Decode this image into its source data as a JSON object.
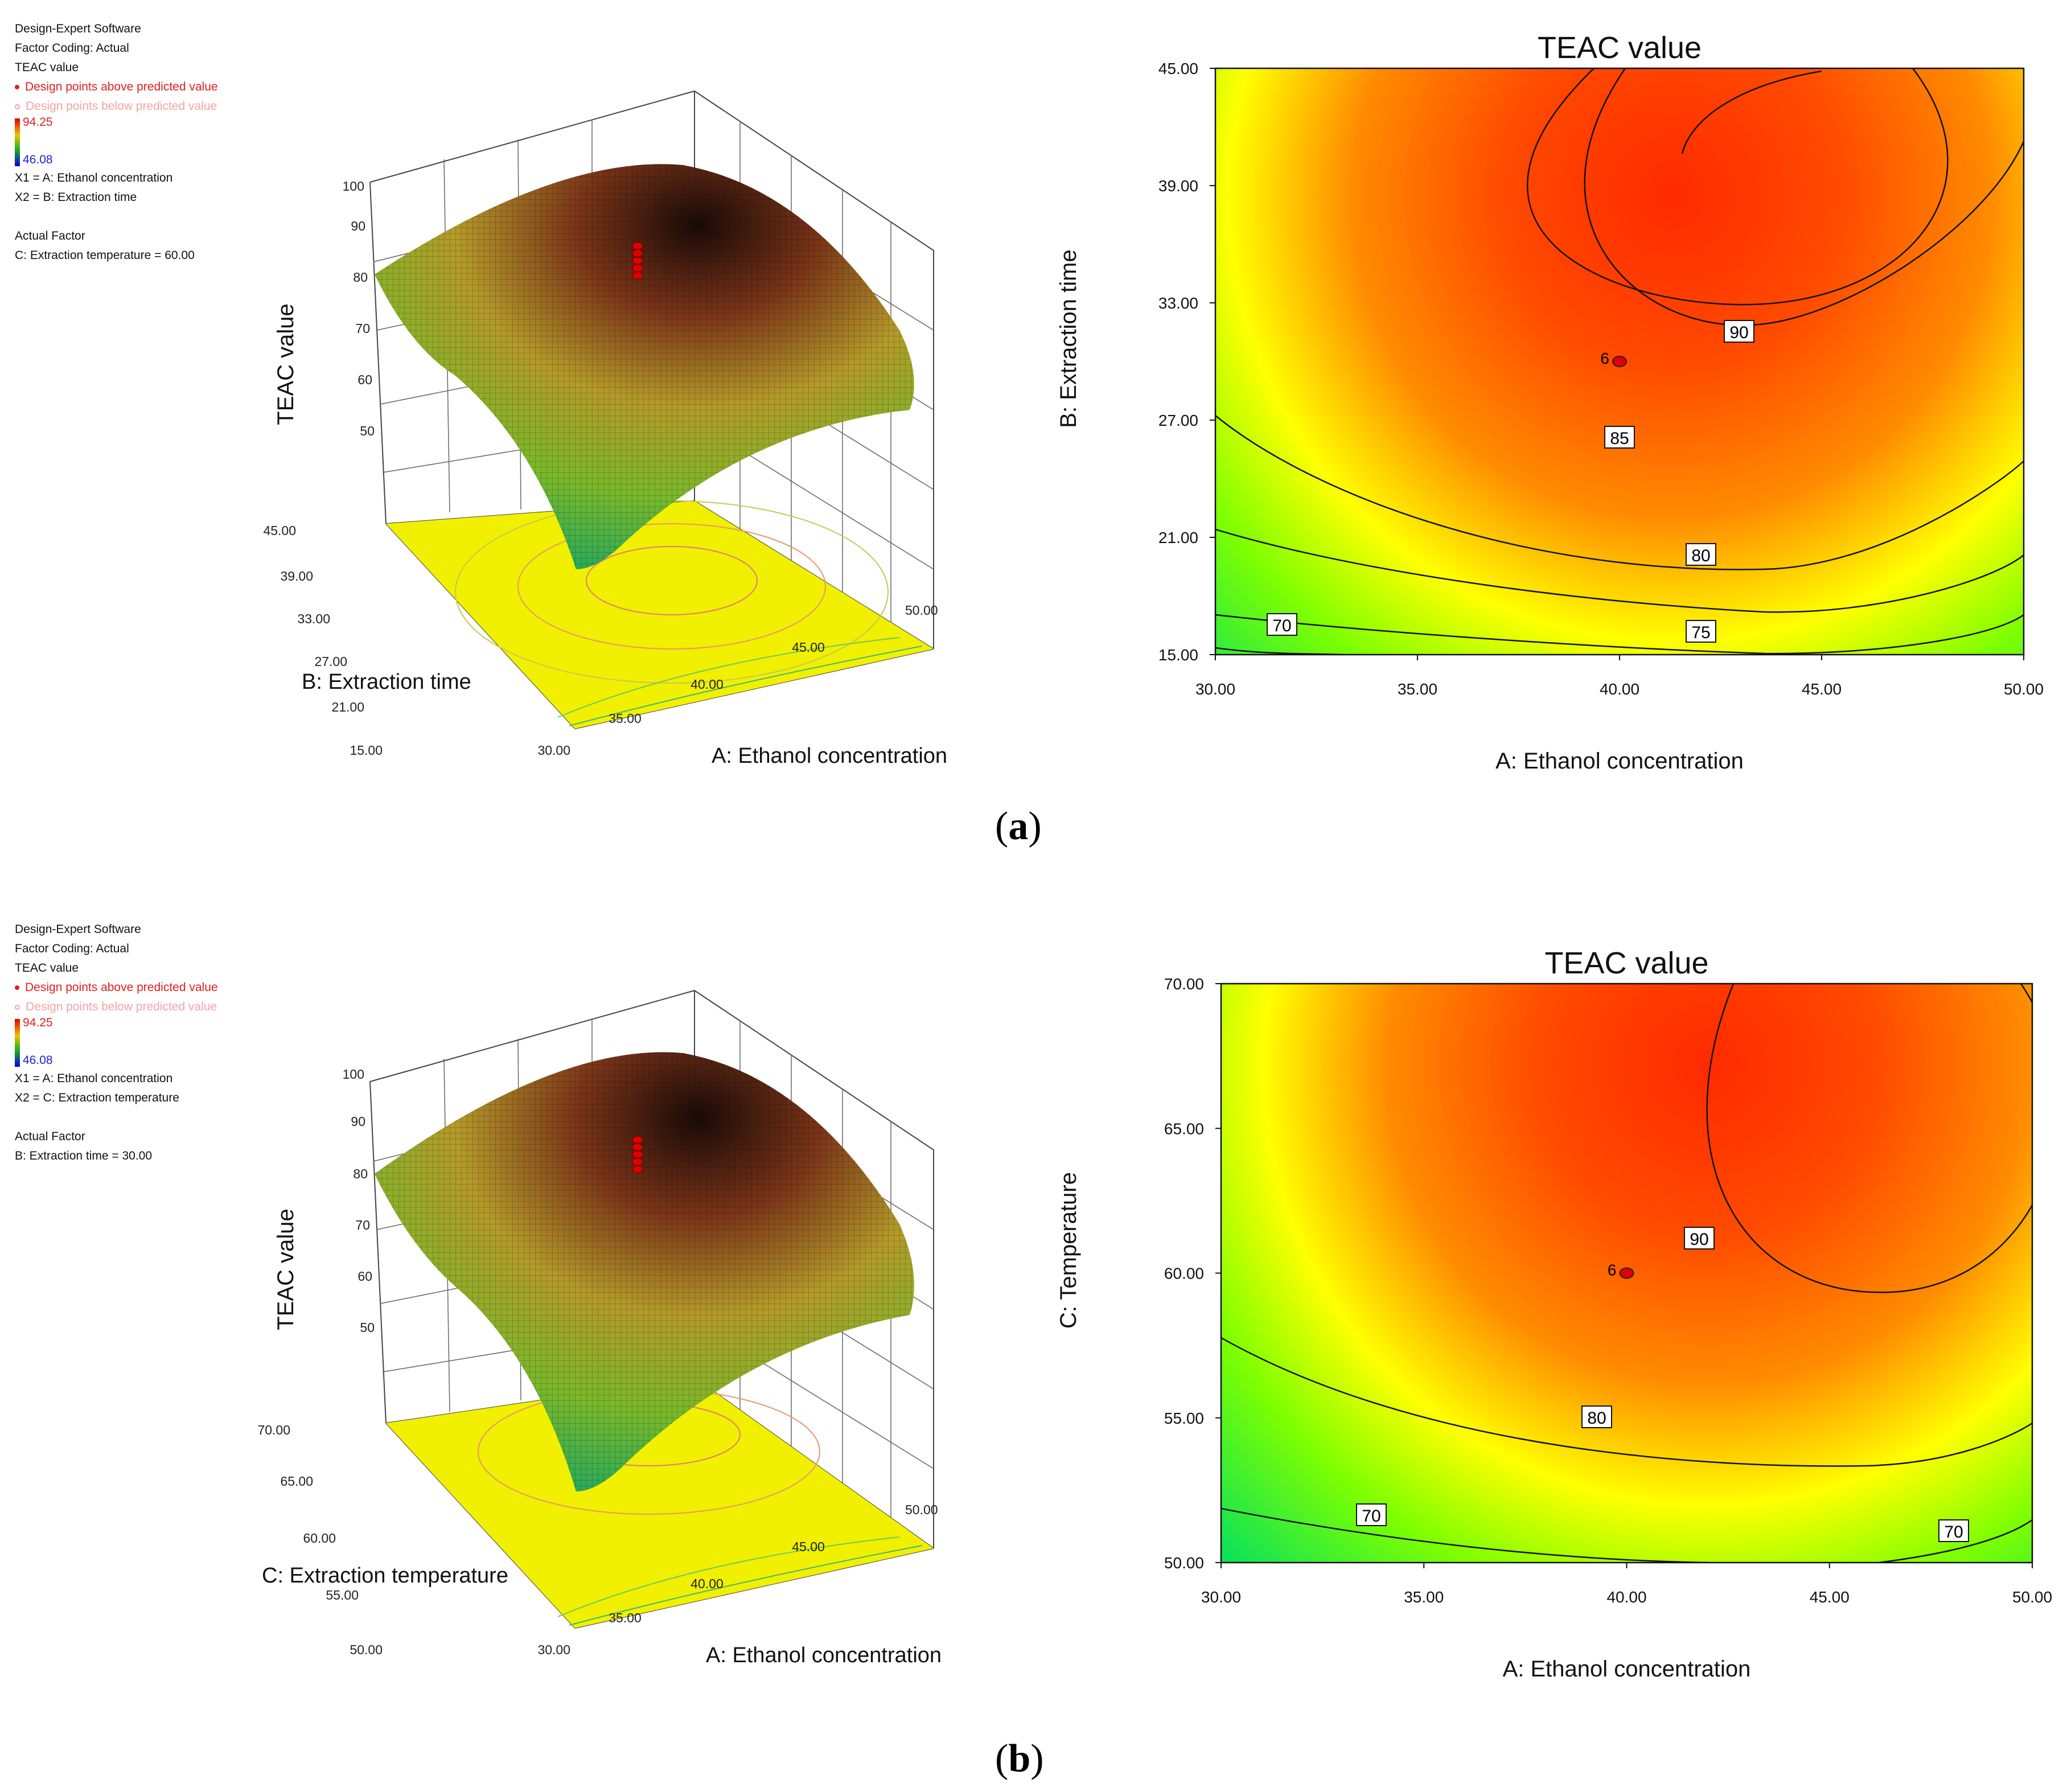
{
  "panels": [
    {
      "label": "a",
      "info": {
        "software": "Design-Expert  Software",
        "coding": "Factor Coding: Actual",
        "response": "TEAC value",
        "above": "Design points above predicted value",
        "below": "Design points below predicted value",
        "max": "94.25",
        "min": "46.08",
        "x1": "X1 = A: Ethanol concentration",
        "x2": "X2 = B: Extraction time",
        "actual_factor": "Actual Factor",
        "actual_value": "C: Extraction temperature = 60.00"
      },
      "surface": {
        "zlabel": "TEAC value",
        "zticks": [
          "100",
          "90",
          "80",
          "70",
          "60",
          "50"
        ],
        "xlabel": "A: Ethanol concentration",
        "xticks": [
          "30.00",
          "35.00",
          "40.00",
          "45.00",
          "50.00"
        ],
        "ylabel": "B: Extraction time",
        "yticks": [
          "15.00",
          "21.00",
          "27.00",
          "33.00",
          "39.00",
          "45.00"
        ]
      },
      "chart_data": {
        "type": "heatmap",
        "title": "TEAC value",
        "xlabel": "A: Ethanol concentration",
        "ylabel": "B: Extraction time",
        "xlim": [
          30,
          50
        ],
        "ylim": [
          15,
          45
        ],
        "xticks": [
          "30.00",
          "35.00",
          "40.00",
          "45.00",
          "50.00"
        ],
        "yticks": [
          "15.00",
          "21.00",
          "27.00",
          "33.00",
          "39.00",
          "45.00"
        ],
        "contour_levels": [
          "90",
          "85",
          "80",
          "75",
          "70"
        ],
        "design_point": {
          "x": 40,
          "y": 30,
          "label": "6"
        },
        "optimum": {
          "x": 41.3,
          "y": 38.5,
          "value": 94.25
        }
      }
    },
    {
      "label": "b",
      "info": {
        "software": "Design-Expert  Software",
        "coding": "Factor Coding: Actual",
        "response": "TEAC value",
        "above": "Design points above predicted value",
        "below": "Design points below predicted value",
        "max": "94.25",
        "min": "46.08",
        "x1": "X1 = A: Ethanol concentration",
        "x2": "X2 = C: Extraction temperature",
        "actual_factor": "Actual Factor",
        "actual_value": "B: Extraction time = 30.00"
      },
      "surface": {
        "zlabel": "TEAC value",
        "zticks": [
          "100",
          "90",
          "80",
          "70",
          "60",
          "50"
        ],
        "xlabel": "A: Ethanol concentration",
        "xticks": [
          "30.00",
          "35.00",
          "40.00",
          "45.00",
          "50.00"
        ],
        "ylabel": "C: Extraction temperature",
        "yticks": [
          "50.00",
          "55.00",
          "60.00",
          "65.00",
          "70.00"
        ]
      },
      "chart_data": {
        "type": "heatmap",
        "title": "TEAC value",
        "xlabel": "A: Ethanol concentration",
        "ylabel": "C: Temperature",
        "xlim": [
          30,
          50
        ],
        "ylim": [
          50,
          70
        ],
        "xticks": [
          "30.00",
          "35.00",
          "40.00",
          "45.00",
          "50.00"
        ],
        "yticks": [
          "50.00",
          "55.00",
          "60.00",
          "65.00",
          "70.00"
        ],
        "contour_levels": [
          "90",
          "80",
          "70",
          "70"
        ],
        "design_point": {
          "x": 40,
          "y": 60,
          "label": "6"
        },
        "optimum": {
          "x": 42,
          "y": 67.2,
          "value": 94.25
        }
      }
    }
  ]
}
